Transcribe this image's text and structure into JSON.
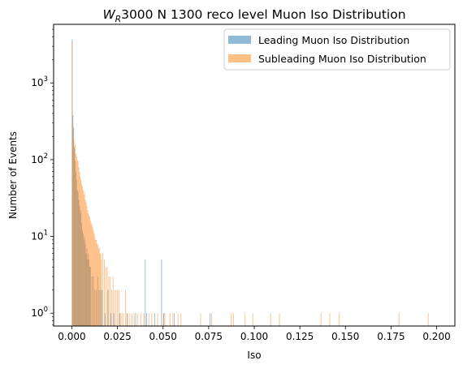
{
  "chart_data": {
    "type": "bar",
    "title_main": "3000 N 1300 reco level Muon Iso Distribution",
    "title_sym": "W",
    "title_sub": "R",
    "xlabel": "Iso",
    "ylabel": "Number of Events",
    "xlim": [
      -0.01,
      0.21
    ],
    "ylim": [
      0.68,
      5800
    ],
    "yscale": "log",
    "grid": false,
    "legend_position": "top-right",
    "x_ticks": [
      "0.000",
      "0.025",
      "0.050",
      "0.075",
      "0.100",
      "0.125",
      "0.150",
      "0.175",
      "0.200"
    ],
    "x_tick_values": [
      0,
      0.025,
      0.05,
      0.075,
      0.1,
      0.125,
      0.15,
      0.175,
      0.2
    ],
    "y_ticks": [
      {
        "base": "10",
        "exp": "0",
        "value": 1
      },
      {
        "base": "10",
        "exp": "1",
        "value": 10
      },
      {
        "base": "10",
        "exp": "2",
        "value": 100
      },
      {
        "base": "10",
        "exp": "3",
        "value": 1000
      }
    ],
    "bin_width": 0.0004,
    "series": [
      {
        "name": "Leading Muon Iso Distribution",
        "color": "#1f77b4",
        "bins": [
          [
            0.0,
            3700
          ],
          [
            0.0004,
            380
          ],
          [
            0.0008,
            260
          ],
          [
            0.0012,
            140
          ],
          [
            0.0016,
            95
          ],
          [
            0.002,
            70
          ],
          [
            0.0024,
            55
          ],
          [
            0.0028,
            40
          ],
          [
            0.0032,
            38
          ],
          [
            0.0036,
            30
          ],
          [
            0.004,
            25
          ],
          [
            0.0044,
            20
          ],
          [
            0.0048,
            22
          ],
          [
            0.0052,
            15
          ],
          [
            0.0056,
            12
          ],
          [
            0.006,
            11
          ],
          [
            0.0064,
            9
          ],
          [
            0.0068,
            10
          ],
          [
            0.0072,
            8
          ],
          [
            0.0076,
            6
          ],
          [
            0.008,
            7
          ],
          [
            0.0084,
            5
          ],
          [
            0.0088,
            6
          ],
          [
            0.0092,
            5
          ],
          [
            0.0096,
            4
          ],
          [
            0.01,
            4
          ],
          [
            0.0108,
            3
          ],
          [
            0.0116,
            3
          ],
          [
            0.0124,
            2
          ],
          [
            0.0132,
            2
          ],
          [
            0.014,
            3
          ],
          [
            0.0148,
            2
          ],
          [
            0.0156,
            2
          ],
          [
            0.0164,
            2
          ],
          [
            0.018,
            1
          ],
          [
            0.0196,
            2
          ],
          [
            0.0212,
            1
          ],
          [
            0.0228,
            1
          ],
          [
            0.026,
            1
          ],
          [
            0.03,
            1
          ],
          [
            0.0348,
            1
          ],
          [
            0.04,
            5
          ],
          [
            0.0408,
            1
          ],
          [
            0.0452,
            1
          ],
          [
            0.049,
            5
          ],
          [
            0.0502,
            1
          ],
          [
            0.056,
            1
          ],
          [
            0.0756,
            1
          ]
        ]
      },
      {
        "name": "Subleading Muon Iso Distribution",
        "color": "#ff7f0e",
        "bins": [
          [
            0.0,
            3500
          ],
          [
            0.0004,
            280
          ],
          [
            0.0008,
            180
          ],
          [
            0.0012,
            150
          ],
          [
            0.0016,
            160
          ],
          [
            0.002,
            120
          ],
          [
            0.0024,
            110
          ],
          [
            0.0028,
            100
          ],
          [
            0.0032,
            95
          ],
          [
            0.0036,
            80
          ],
          [
            0.004,
            70
          ],
          [
            0.0044,
            60
          ],
          [
            0.0048,
            55
          ],
          [
            0.0052,
            48
          ],
          [
            0.0056,
            45
          ],
          [
            0.006,
            40
          ],
          [
            0.0064,
            35
          ],
          [
            0.0068,
            38
          ],
          [
            0.0072,
            30
          ],
          [
            0.0076,
            28
          ],
          [
            0.008,
            25
          ],
          [
            0.0084,
            22
          ],
          [
            0.0088,
            20
          ],
          [
            0.0092,
            19
          ],
          [
            0.0096,
            18
          ],
          [
            0.01,
            16
          ],
          [
            0.0104,
            15
          ],
          [
            0.0108,
            14
          ],
          [
            0.0112,
            13
          ],
          [
            0.0116,
            12
          ],
          [
            0.012,
            11
          ],
          [
            0.0124,
            10
          ],
          [
            0.0128,
            9
          ],
          [
            0.0132,
            9
          ],
          [
            0.0136,
            8
          ],
          [
            0.014,
            8
          ],
          [
            0.0144,
            7
          ],
          [
            0.0148,
            7
          ],
          [
            0.0152,
            6
          ],
          [
            0.0156,
            6
          ],
          [
            0.016,
            5
          ],
          [
            0.0168,
            6
          ],
          [
            0.0176,
            5
          ],
          [
            0.0184,
            4
          ],
          [
            0.0192,
            4
          ],
          [
            0.02,
            3
          ],
          [
            0.0208,
            3
          ],
          [
            0.0216,
            2
          ],
          [
            0.0224,
            3
          ],
          [
            0.0232,
            2
          ],
          [
            0.024,
            2
          ],
          [
            0.0248,
            2
          ],
          [
            0.0256,
            2
          ],
          [
            0.0264,
            1
          ],
          [
            0.0272,
            1
          ],
          [
            0.028,
            1
          ],
          [
            0.0292,
            2
          ],
          [
            0.0304,
            1
          ],
          [
            0.0316,
            1
          ],
          [
            0.0328,
            1
          ],
          [
            0.034,
            1
          ],
          [
            0.036,
            1
          ],
          [
            0.0376,
            1
          ],
          [
            0.0392,
            1
          ],
          [
            0.042,
            1
          ],
          [
            0.0436,
            1
          ],
          [
            0.0468,
            1
          ],
          [
            0.05,
            1
          ],
          [
            0.0508,
            1
          ],
          [
            0.0536,
            1
          ],
          [
            0.0552,
            1
          ],
          [
            0.058,
            1
          ],
          [
            0.0596,
            1
          ],
          [
            0.0704,
            1
          ],
          [
            0.0764,
            1
          ],
          [
            0.0872,
            1
          ],
          [
            0.0884,
            1
          ],
          [
            0.0948,
            1
          ],
          [
            0.099,
            1
          ],
          [
            0.1088,
            1
          ],
          [
            0.1136,
            1
          ],
          [
            0.1364,
            1
          ],
          [
            0.1412,
            1
          ],
          [
            0.1464,
            1
          ],
          [
            0.1792,
            1
          ],
          [
            0.1952,
            1
          ]
        ]
      }
    ]
  }
}
